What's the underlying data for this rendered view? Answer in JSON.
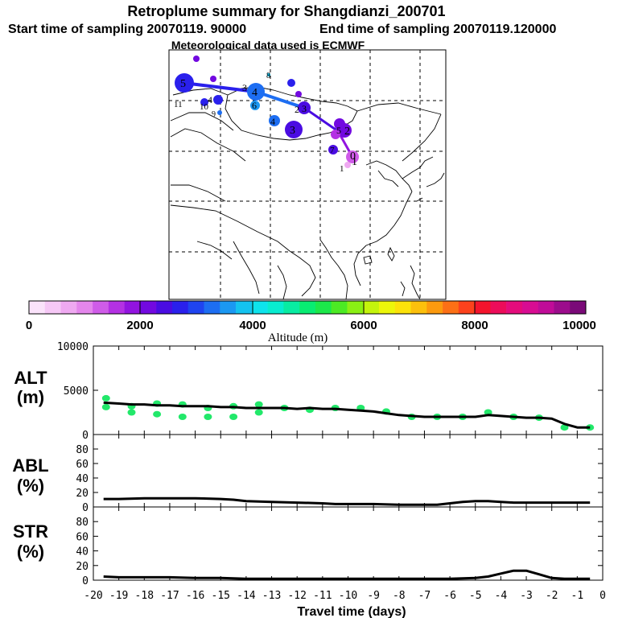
{
  "header": {
    "title": "Retroplume summary for Shangdianzi_200701",
    "start_label": "Start time of sampling 20070119. 90000",
    "end_label": "End time of sampling 20070119.120000",
    "met_label": "Meteorological data used is ECMWF"
  },
  "colorbar": {
    "ticks": [
      "0",
      "2000",
      "4000",
      "6000",
      "8000",
      "10000"
    ],
    "label": "Altitude (m)",
    "colors": [
      "#fbe3fb",
      "#f6c8f6",
      "#efa9f1",
      "#e486ec",
      "#cf5ce8",
      "#b431e3",
      "#9214e0",
      "#7209e0",
      "#4a0ce2",
      "#2a20ec",
      "#1f44f0",
      "#1d6ef2",
      "#1b98f2",
      "#14c3f0",
      "#0ee3ec",
      "#08ecd0",
      "#08eca2",
      "#08ec72",
      "#1ce84a",
      "#4cea24",
      "#8af014",
      "#c4f40c",
      "#ecf60a",
      "#fce20a",
      "#fcc00c",
      "#fc9a0e",
      "#fc7016",
      "#fc421c",
      "#f4142c",
      "#ec0c5a",
      "#e40c7c",
      "#d80c92",
      "#c00c98",
      "#9c0c8c",
      "#7a0a78"
    ]
  },
  "map": {
    "receptor_marker": "0",
    "cluster_labels": [
      "0",
      "1",
      "1",
      "2",
      "2",
      "3",
      "3",
      "4",
      "4",
      "5",
      "5",
      "6",
      "7",
      "8",
      "9",
      "10",
      "11"
    ]
  },
  "chart_data": [
    {
      "type": "line",
      "panel": "ALT",
      "ylabel": "ALT (m)",
      "ylim": [
        0,
        10000
      ],
      "yticks": [
        "10000",
        "5000",
        "0"
      ],
      "x": [
        -19.6,
        -19,
        -18.5,
        -18,
        -17.5,
        -17,
        -16.5,
        -16,
        -15.5,
        -15,
        -14.5,
        -14,
        -13.5,
        -13,
        -12.5,
        -12,
        -11.5,
        -11,
        -10.5,
        -10,
        -9.5,
        -9,
        -8.5,
        -8,
        -7.5,
        -7,
        -6.5,
        -6,
        -5.5,
        -5,
        -4.5,
        -4,
        -3.5,
        -3,
        -2.5,
        -2,
        -1.5,
        -1,
        -0.5
      ],
      "y": [
        3600,
        3500,
        3400,
        3400,
        3300,
        3300,
        3200,
        3200,
        3200,
        3100,
        3100,
        3000,
        3000,
        3000,
        3000,
        2900,
        3000,
        2900,
        2900,
        2800,
        2700,
        2600,
        2400,
        2200,
        2100,
        2000,
        2000,
        2000,
        2000,
        2000,
        2200,
        2100,
        2000,
        1900,
        1900,
        1800,
        1200,
        800,
        800
      ],
      "cluster_points": [
        {
          "x": -19.5,
          "y": 3100
        },
        {
          "x": -19.5,
          "y": 4100
        },
        {
          "x": -18.5,
          "y": 3200
        },
        {
          "x": -18.5,
          "y": 2500
        },
        {
          "x": -17.5,
          "y": 3500
        },
        {
          "x": -17.5,
          "y": 2300
        },
        {
          "x": -16.5,
          "y": 3400
        },
        {
          "x": -16.5,
          "y": 2000
        },
        {
          "x": -15.5,
          "y": 3000
        },
        {
          "x": -15.5,
          "y": 2000
        },
        {
          "x": -14.5,
          "y": 3200
        },
        {
          "x": -14.5,
          "y": 2000
        },
        {
          "x": -13.5,
          "y": 3400
        },
        {
          "x": -13.5,
          "y": 2500
        },
        {
          "x": -12.5,
          "y": 3000
        },
        {
          "x": -11.5,
          "y": 2800
        },
        {
          "x": -10.5,
          "y": 3000
        },
        {
          "x": -9.5,
          "y": 3000
        },
        {
          "x": -8.5,
          "y": 2600
        },
        {
          "x": -7.5,
          "y": 2000
        },
        {
          "x": -6.5,
          "y": 2000
        },
        {
          "x": -5.5,
          "y": 2000
        },
        {
          "x": -4.5,
          "y": 2500
        },
        {
          "x": -3.5,
          "y": 2000
        },
        {
          "x": -2.5,
          "y": 1900
        },
        {
          "x": -1.5,
          "y": 800
        },
        {
          "x": -0.5,
          "y": 800
        }
      ],
      "cluster_color": "#22e86a"
    },
    {
      "type": "line",
      "panel": "ABL",
      "ylabel": "ABL (%)",
      "ylim": [
        0,
        100
      ],
      "yticks": [
        "80",
        "60",
        "40",
        "20",
        "0"
      ],
      "x": [
        -19.6,
        -19,
        -18,
        -17,
        -16,
        -15,
        -14.5,
        -14,
        -13,
        -12,
        -11,
        -10.5,
        -10,
        -9,
        -8,
        -7,
        -6.5,
        -6,
        -5.5,
        -5,
        -4.5,
        -4,
        -3.5,
        -3,
        -2,
        -1,
        -0.5
      ],
      "y": [
        11,
        11,
        12,
        12,
        12,
        11,
        10,
        8,
        7,
        6,
        5,
        4,
        4,
        4,
        3,
        3,
        3,
        5,
        7,
        8,
        8,
        7,
        6,
        6,
        6,
        6,
        6
      ]
    },
    {
      "type": "line",
      "panel": "STR",
      "ylabel": "STR (%)",
      "ylim": [
        0,
        100
      ],
      "yticks": [
        "80",
        "60",
        "40",
        "20",
        "0"
      ],
      "xlabel": "Travel time (days)",
      "xlim": [
        -20,
        0
      ],
      "xticks": [
        "-20",
        "-19",
        "-18",
        "-17",
        "-16",
        "-15",
        "-14",
        "-13",
        "-12",
        "-11",
        "-10",
        "-9",
        "-8",
        "-7",
        "-6",
        "-5",
        "-4",
        "-3",
        "-2",
        "-1",
        "0"
      ],
      "x": [
        -19.6,
        -19,
        -18,
        -17,
        -16,
        -15,
        -14,
        -13,
        -12,
        -11,
        -10,
        -9,
        -8,
        -7,
        -6,
        -5,
        -4.5,
        -4,
        -3.5,
        -3,
        -2.5,
        -2,
        -1.5,
        -1,
        -0.5
      ],
      "y": [
        5,
        4,
        4,
        4,
        3,
        3,
        2,
        2,
        2,
        2,
        2,
        2,
        2,
        2,
        2,
        3,
        5,
        9,
        13,
        13,
        8,
        3,
        2,
        2,
        2
      ]
    }
  ]
}
